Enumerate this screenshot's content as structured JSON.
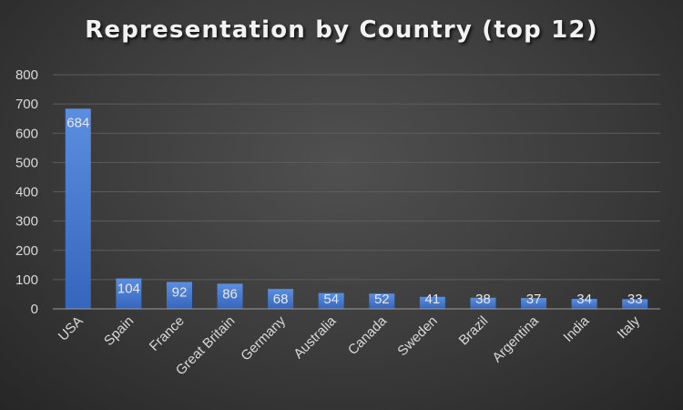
{
  "chart_data": {
    "type": "bar",
    "title": "Representation by Country (top 12)",
    "categories": [
      "USA",
      "Spain",
      "France",
      "Great Britain",
      "Germany",
      "Australia",
      "Canada",
      "Sweden",
      "Brazil",
      "Argentina",
      "India",
      "Italy"
    ],
    "values": [
      684,
      104,
      92,
      86,
      68,
      54,
      52,
      41,
      38,
      37,
      34,
      33
    ],
    "ylim": [
      0,
      800
    ],
    "yticks": [
      0,
      100,
      200,
      300,
      400,
      500,
      600,
      700,
      800
    ],
    "grid": true,
    "legend": "none",
    "data_labels": true
  },
  "colors": {
    "bar_top": "#5b8ee0",
    "bar_bottom": "#3566bd",
    "grid": "#5c5c5c",
    "text": "#d9d9d9"
  }
}
